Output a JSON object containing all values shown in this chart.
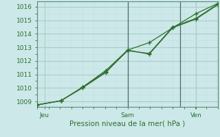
{
  "xlabel": "Pression niveau de la mer( hPa )",
  "bg_color": "#cce8e8",
  "grid_major_color": "#aacccc",
  "grid_minor_color": "#c4e0e0",
  "line_color": "#2d6e2d",
  "vline_color": "#4a6a6a",
  "tick_label_color": "#2d6e2d",
  "xlabel_color": "#2d6e2d",
  "ylim": [
    1008.6,
    1016.4
  ],
  "xlim": [
    0.0,
    1.0
  ],
  "xtick_positions": [
    0.04,
    0.5,
    0.88
  ],
  "xtick_labels": [
    "Jeu",
    "Sam",
    "Ven"
  ],
  "vline_x": 0.5,
  "vline2_x": 0.79,
  "ytick_values": [
    1009,
    1010,
    1011,
    1012,
    1013,
    1014,
    1015,
    1016
  ],
  "s1_x": [
    0.0,
    0.13,
    0.25,
    0.38,
    0.5,
    0.62,
    0.75,
    0.88,
    1.0
  ],
  "s1_y": [
    1008.75,
    1009.05,
    1010.0,
    1011.15,
    1012.8,
    1012.5,
    1014.45,
    1015.1,
    1016.15
  ],
  "s2_x": [
    0.0,
    0.13,
    0.25,
    0.38,
    0.5,
    0.62,
    0.75,
    0.88,
    1.0
  ],
  "s2_y": [
    1008.75,
    1009.05,
    1010.05,
    1011.2,
    1012.75,
    1012.55,
    1014.5,
    1015.15,
    1016.2
  ],
  "s3_x": [
    0.0,
    0.13,
    0.25,
    0.38,
    0.5,
    0.62,
    0.75,
    0.88,
    1.0
  ],
  "s3_y": [
    1008.75,
    1009.05,
    1010.05,
    1011.3,
    1012.8,
    1013.35,
    1014.45,
    1015.5,
    1016.25
  ]
}
